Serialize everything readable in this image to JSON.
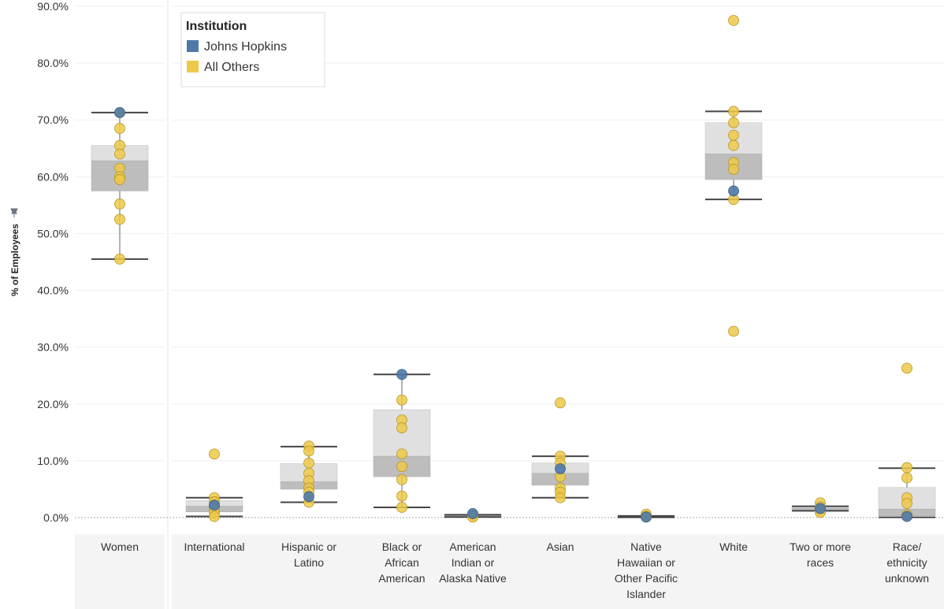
{
  "chart_data": {
    "type": "scatter",
    "subtype": "box-and-whisker with dot strip",
    "ylabel": "% of Employees",
    "ylim": [
      0,
      90
    ],
    "yticks": [
      "0.0%",
      "10.0%",
      "20.0%",
      "30.0%",
      "40.0%",
      "50.0%",
      "60.0%",
      "70.0%",
      "80.0%",
      "90.0%"
    ],
    "grid": true,
    "legend": {
      "title": "Institution",
      "position": "top-left",
      "entries": [
        {
          "name": "Johns Hopkins",
          "color": "#4e79a7"
        },
        {
          "name": "All Others",
          "color": "#edc948"
        }
      ]
    },
    "categories": [
      {
        "label": [
          "Women"
        ],
        "box": {
          "min": 45.5,
          "q1": 57.5,
          "median": 62.8,
          "q3": 65.5,
          "max": 71.3
        },
        "points": [
          71.3,
          68.5,
          65.5,
          64.0,
          61.5,
          60.0,
          59.5,
          55.2,
          52.5,
          45.5
        ],
        "jhu": 71.3
      },
      {
        "label": [
          "International"
        ],
        "box": {
          "min": 0.2,
          "q1": 1.0,
          "median": 2.0,
          "q3": 3.0,
          "max": 3.5
        },
        "points": [
          11.2,
          3.5,
          2.8,
          2.0,
          1.5,
          0.8,
          0.2
        ],
        "jhu": 2.2
      },
      {
        "label": [
          "Hispanic or",
          "Latino"
        ],
        "box": {
          "min": 2.7,
          "q1": 5.0,
          "median": 6.3,
          "q3": 9.5,
          "max": 12.5
        },
        "points": [
          12.6,
          11.7,
          9.6,
          7.8,
          6.5,
          5.2,
          4.5,
          2.7
        ],
        "jhu": 3.7
      },
      {
        "label": [
          "Black or",
          "African",
          "American"
        ],
        "box": {
          "min": 1.8,
          "q1": 7.2,
          "median": 10.8,
          "q3": 19.0,
          "max": 25.2
        },
        "points": [
          20.7,
          17.2,
          15.8,
          11.2,
          9.0,
          6.7,
          3.8,
          1.8
        ],
        "jhu": 25.2
      },
      {
        "label": [
          "American",
          "Indian or",
          "Alaska Native"
        ],
        "box": {
          "min": 0.1,
          "q1": 0.2,
          "median": 0.3,
          "q3": 0.4,
          "max": 0.5
        },
        "points": [
          0.3,
          0.2,
          0.1
        ],
        "jhu": 0.7
      },
      {
        "label": [
          "Asian"
        ],
        "box": {
          "min": 3.5,
          "q1": 5.7,
          "median": 7.8,
          "q3": 9.6,
          "max": 10.8
        },
        "points": [
          20.2,
          10.8,
          9.6,
          7.2,
          5.2,
          4.5,
          3.5
        ],
        "jhu": 8.6
      },
      {
        "label": [
          "Native",
          "Hawaiian or",
          "Other Pacific",
          "Islander"
        ],
        "box": {
          "min": 0.05,
          "q1": 0.1,
          "median": 0.15,
          "q3": 0.2,
          "max": 0.3
        },
        "points": [
          0.6,
          0.2,
          0.1
        ],
        "jhu": 0.1
      },
      {
        "label": [
          "White"
        ],
        "box": {
          "min": 56.0,
          "q1": 59.5,
          "median": 64.0,
          "q3": 69.5,
          "max": 71.5
        },
        "points": [
          87.5,
          71.5,
          69.5,
          67.3,
          65.5,
          62.5,
          61.3,
          56.0,
          32.8
        ],
        "jhu": 57.5
      },
      {
        "label": [
          "Two or more",
          "races"
        ],
        "box": {
          "min": 1.2,
          "q1": 1.3,
          "median": 1.6,
          "q3": 1.8,
          "max": 2.0
        },
        "points": [
          2.6,
          1.9,
          1.5,
          1.2,
          0.9
        ],
        "jhu": 1.6
      },
      {
        "label": [
          "Race/",
          "ethnicity",
          "unknown"
        ],
        "box": {
          "min": 0.05,
          "q1": 0.3,
          "median": 1.5,
          "q3": 5.3,
          "max": 8.7
        },
        "points": [
          26.3,
          8.8,
          7.0,
          3.5,
          2.5,
          0.5
        ],
        "jhu": 0.2
      }
    ]
  }
}
